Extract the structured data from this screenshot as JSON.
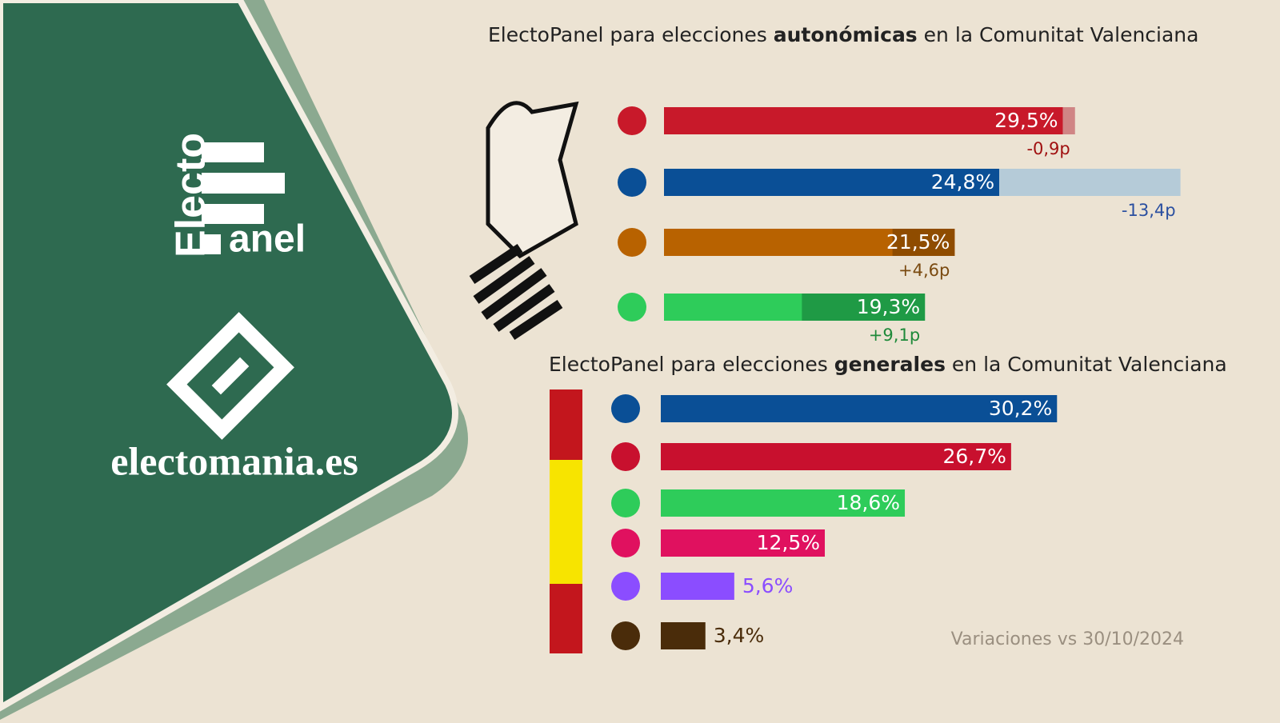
{
  "chart_data": [
    {
      "type": "bar",
      "title": "ElectoPanel para elecciones autonómicas en la Comunitat Valenciana",
      "title_emphasis": "autonómicas",
      "categories": [
        null,
        null,
        null,
        null
      ],
      "values": [
        29.5,
        24.8,
        21.5,
        19.3
      ],
      "value_labels": [
        "29,5%",
        "24,8%",
        "21,5%",
        "19,3%"
      ],
      "changes": [
        -0.9,
        -13.4,
        4.6,
        9.1
      ],
      "change_labels": [
        "-0,9p",
        "-13,4p",
        "+4,6p",
        "+9,1p"
      ],
      "colors": [
        "#c8192a",
        "#0a4f96",
        "#b86200",
        "#2ecc5a"
      ],
      "change_colors": [
        "#d08585",
        "#b5cbd8",
        "#8f4c00",
        "#1f9a45"
      ],
      "change_text_colors": [
        "#a01010",
        "#2a4fa0",
        "#7a4a10",
        "#1f8a3a"
      ]
    },
    {
      "type": "bar",
      "title": "ElectoPanel para elecciones generales en la Comunitat Valenciana",
      "title_emphasis": "generales",
      "categories": [
        null,
        null,
        null,
        null,
        null,
        null
      ],
      "values": [
        30.2,
        26.7,
        18.6,
        12.5,
        5.6,
        3.4
      ],
      "value_labels": [
        "30,2%",
        "26,7%",
        "18,6%",
        "12,5%",
        "5,6%",
        "3,4%"
      ],
      "colors": [
        "#0a4f96",
        "#c8102e",
        "#2ecc5a",
        "#e0115f",
        "#8b4dff",
        "#4a2c0a"
      ]
    }
  ],
  "footnote": "Variaciones vs 30/10/2024",
  "brand": {
    "logo_top": "Electo",
    "logo_bottom": "anel",
    "site": "electomania.es"
  }
}
